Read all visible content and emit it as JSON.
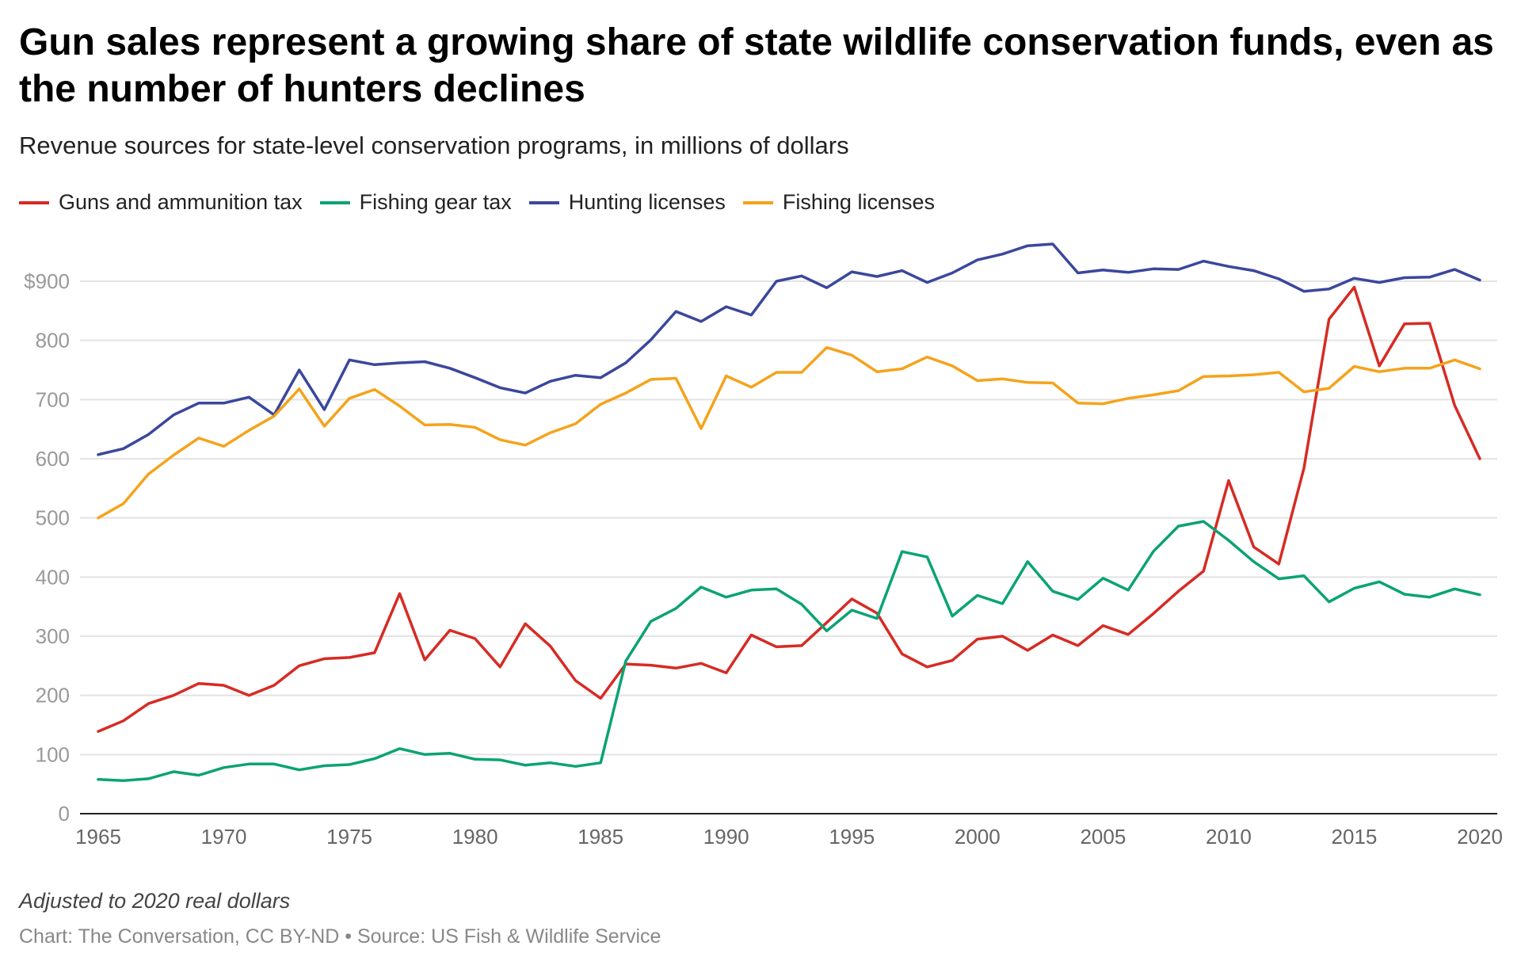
{
  "title": "Gun sales represent a growing share of state wildlife conservation funds, even as the number of hunters declines",
  "subtitle": "Revenue sources for state-level conservation programs, in millions of dollars",
  "note": "Adjusted to 2020 real dollars",
  "source": "Chart: The Conversation, CC BY-ND • Source: US Fish & Wildlife Service",
  "chart_data": {
    "type": "line",
    "title": "Gun sales represent a growing share of state wildlife conservation funds, even as the number of hunters declines",
    "xlabel": "",
    "ylabel": "",
    "xlim": [
      1965,
      2020
    ],
    "ylim": [
      0,
      900
    ],
    "grid": true,
    "legend_position": "top-left",
    "x_ticks": [
      "1965",
      "1970",
      "1975",
      "1980",
      "1985",
      "1990",
      "1995",
      "2000",
      "2005",
      "2010",
      "2015",
      "2020"
    ],
    "y_ticks": [
      "0",
      "100",
      "200",
      "300",
      "400",
      "500",
      "600",
      "700",
      "800",
      "$900"
    ],
    "x": [
      1965,
      1966,
      1967,
      1968,
      1969,
      1970,
      1971,
      1972,
      1973,
      1974,
      1975,
      1976,
      1977,
      1978,
      1979,
      1980,
      1981,
      1982,
      1983,
      1984,
      1985,
      1986,
      1987,
      1988,
      1989,
      1990,
      1991,
      1992,
      1993,
      1994,
      1995,
      1996,
      1997,
      1998,
      1999,
      2000,
      2001,
      2002,
      2003,
      2004,
      2005,
      2006,
      2007,
      2008,
      2009,
      2010,
      2011,
      2012,
      2013,
      2014,
      2015,
      2016,
      2017,
      2018,
      2019,
      2020
    ],
    "series": [
      {
        "name": "Guns and ammunition tax",
        "color": "#d62b24",
        "values": [
          139,
          157,
          186,
          200,
          220,
          217,
          200,
          217,
          250,
          262,
          264,
          272,
          372,
          260,
          310,
          296,
          248,
          321,
          283,
          225,
          195,
          253,
          251,
          246,
          254,
          238,
          302,
          282,
          284,
          323,
          363,
          339,
          270,
          248,
          259,
          295,
          300,
          276,
          302,
          284,
          318,
          303,
          338,
          376,
          410,
          563,
          451,
          422,
          584,
          836,
          890,
          757,
          828,
          829,
          690,
          600
        ]
      },
      {
        "name": "Fishing gear tax",
        "color": "#0ba374",
        "values": [
          58,
          56,
          59,
          71,
          65,
          78,
          84,
          84,
          74,
          81,
          83,
          93,
          110,
          100,
          102,
          92,
          91,
          82,
          86,
          80,
          86,
          258,
          325,
          347,
          383,
          366,
          378,
          380,
          354,
          309,
          344,
          330,
          443,
          434,
          334,
          369,
          355,
          426,
          376,
          362,
          398,
          378,
          443,
          486,
          494,
          462,
          426,
          397,
          402,
          358,
          381,
          392,
          371,
          366,
          380,
          370
        ]
      },
      {
        "name": "Hunting licenses",
        "color": "#3b479c",
        "values": [
          607,
          617,
          641,
          674,
          694,
          694,
          704,
          674,
          750,
          683,
          767,
          759,
          762,
          764,
          753,
          737,
          720,
          711,
          731,
          741,
          737,
          762,
          801,
          849,
          832,
          857,
          843,
          900,
          909,
          889,
          916,
          908,
          918,
          898,
          914,
          936,
          946,
          960,
          963,
          914,
          919,
          915,
          921,
          920,
          934,
          925,
          918,
          904,
          883,
          887,
          905,
          898,
          906,
          907,
          920,
          902
        ]
      },
      {
        "name": "Fishing licenses",
        "color": "#f5a31c",
        "values": [
          500,
          524,
          574,
          606,
          635,
          621,
          648,
          672,
          718,
          655,
          702,
          717,
          689,
          657,
          658,
          653,
          632,
          623,
          644,
          659,
          692,
          711,
          734,
          736,
          651,
          740,
          721,
          746,
          746,
          788,
          775,
          747,
          752,
          772,
          757,
          732,
          735,
          729,
          728,
          694,
          693,
          702,
          708,
          715,
          739,
          740,
          742,
          746,
          713,
          719,
          756,
          747,
          753,
          753,
          767,
          752
        ]
      }
    ]
  }
}
